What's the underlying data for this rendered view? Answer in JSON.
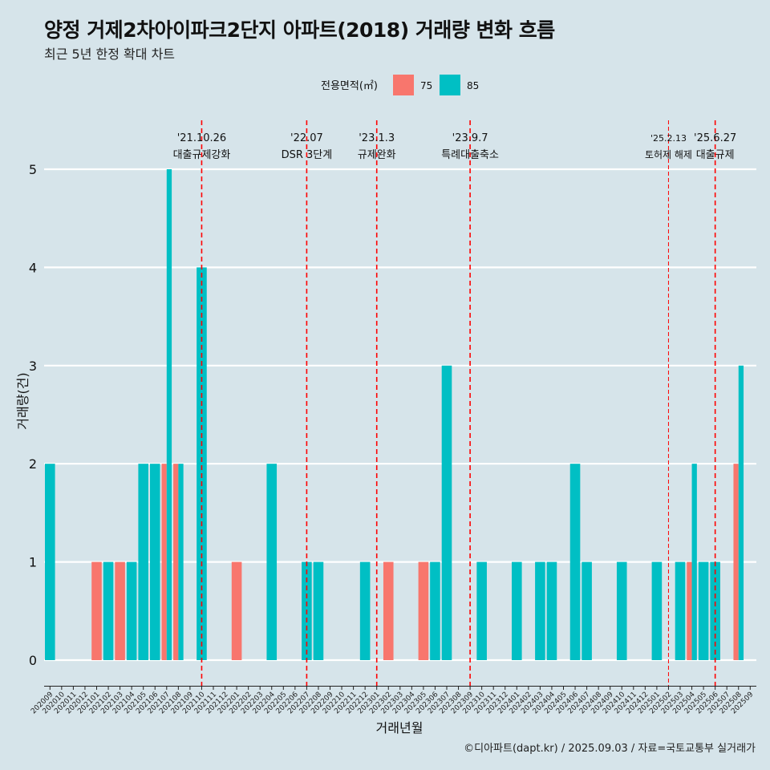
{
  "header": {
    "title": "양정 거제2차아이파크2단지 아파트(2018) 거래량 변화 흐름",
    "subtitle": "최근 5년 한정 확대 차트"
  },
  "footer": {
    "credit": "©디아파트(dapt.kr) / 2025.09.03 / 자료=국토교통부 실거래가"
  },
  "colors": {
    "s75": "#f8766d",
    "s85": "#00bfc4",
    "grid": "#ffffff",
    "event": "#ff0000",
    "background": "#d6e4ea"
  },
  "chart_data": {
    "type": "bar",
    "title": "양정 거제2차아이파크2단지 아파트(2018) 거래량 변화 흐름",
    "xlabel": "거래년월",
    "ylabel": "거래량(건)",
    "ylim": [
      0,
      5
    ],
    "yticks": [
      0,
      1,
      2,
      3,
      4,
      5
    ],
    "legend": {
      "title": "전용면적(㎡)",
      "position": "top"
    },
    "categories": [
      "202009",
      "202010",
      "202011",
      "202012",
      "202101",
      "202102",
      "202103",
      "202104",
      "202105",
      "202106",
      "202107",
      "202108",
      "202109",
      "202110",
      "202111",
      "202112",
      "202201",
      "202202",
      "202203",
      "202204",
      "202205",
      "202206",
      "202207",
      "202208",
      "202209",
      "202210",
      "202211",
      "202212",
      "202301",
      "202302",
      "202303",
      "202304",
      "202305",
      "202306",
      "202307",
      "202308",
      "202309",
      "202310",
      "202311",
      "202312",
      "202401",
      "202402",
      "202403",
      "202404",
      "202405",
      "202406",
      "202407",
      "202408",
      "202409",
      "202410",
      "202411",
      "202412",
      "202501",
      "202502",
      "202503",
      "202504",
      "202505",
      "202506",
      "202507",
      "202508",
      "202509"
    ],
    "series": [
      {
        "name": "75",
        "color_key": "s75",
        "values": [
          0,
          0,
          0,
          0,
          1,
          0,
          1,
          0,
          0,
          0,
          2,
          2,
          0,
          0,
          0,
          0,
          1,
          0,
          0,
          0,
          0,
          0,
          0,
          0,
          0,
          0,
          0,
          0,
          0,
          1,
          0,
          0,
          1,
          0,
          0,
          0,
          0,
          0,
          0,
          0,
          0,
          0,
          0,
          0,
          0,
          0,
          0,
          0,
          0,
          0,
          0,
          0,
          0,
          0,
          0,
          1,
          0,
          0,
          0,
          2,
          0
        ]
      },
      {
        "name": "85",
        "color_key": "s85",
        "values": [
          2,
          0,
          0,
          0,
          0,
          1,
          0,
          1,
          2,
          2,
          5,
          2,
          0,
          4,
          0,
          0,
          0,
          0,
          0,
          2,
          0,
          0,
          1,
          1,
          0,
          0,
          0,
          1,
          0,
          0,
          0,
          0,
          0,
          1,
          3,
          0,
          0,
          1,
          0,
          0,
          1,
          0,
          1,
          1,
          0,
          2,
          1,
          0,
          0,
          1,
          0,
          0,
          1,
          0,
          1,
          2,
          1,
          1,
          0,
          3,
          0
        ]
      }
    ],
    "events": [
      {
        "date": "'21.10.26",
        "label": "대출규제강화",
        "index": 13.0,
        "style": "bold"
      },
      {
        "date": "'22.07",
        "label": "DSR 3단계",
        "index": 22.0,
        "style": "bold"
      },
      {
        "date": "'23.1.3",
        "label": "규제완화",
        "index": 28.0,
        "style": "bold"
      },
      {
        "date": "'23.9.7",
        "label": "특례대출축소",
        "index": 36.0,
        "style": "bold"
      },
      {
        "date": "'25.2.13",
        "label": "토허제 해제",
        "index": 53.0,
        "style": "thin"
      },
      {
        "date": "'25.6.27",
        "label": "대출규제",
        "index": 57.0,
        "style": "bold"
      }
    ]
  }
}
